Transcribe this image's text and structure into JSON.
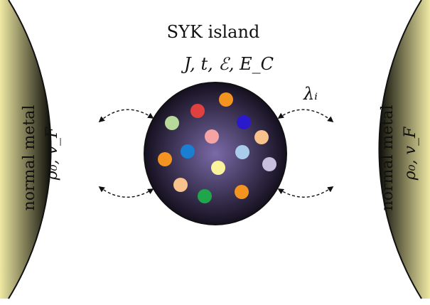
{
  "diagram": {
    "title": "SYK island",
    "island_params": "J, t, ℰ, E_C",
    "coupling_label": "λᵢ",
    "left_lead": {
      "label": "normal metal",
      "params": "ρ₀, v_F"
    },
    "right_lead": {
      "label": "normal metal",
      "params": "ρ₀, v_F"
    },
    "colors": {
      "lead_light": "#efe9a4",
      "lead_dark": "#0d0d08",
      "island_center": "#7a6aa8",
      "island_edge": "#15101f"
    },
    "dots": [
      {
        "color": "#e0413f"
      },
      {
        "color": "#f39320"
      },
      {
        "color": "#b7d99a"
      },
      {
        "color": "#2a1acb"
      },
      {
        "color": "#f4a4a4"
      },
      {
        "color": "#f7c28c"
      },
      {
        "color": "#1a7fd0"
      },
      {
        "color": "#a8cce9"
      },
      {
        "color": "#f39320"
      },
      {
        "color": "#fbf39b"
      },
      {
        "color": "#c8bedd"
      },
      {
        "color": "#f7c28c"
      },
      {
        "color": "#20a64a"
      },
      {
        "color": "#f39320"
      }
    ]
  }
}
